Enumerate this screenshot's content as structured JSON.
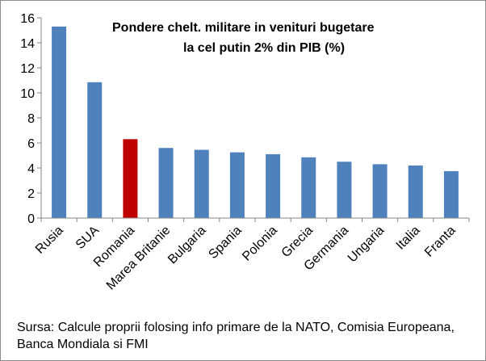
{
  "chart_data": {
    "type": "bar",
    "title_lines": [
      "Pondere chelt. militare in venituri bugetare",
      "la cel putin 2% din PIB (%)"
    ],
    "categories": [
      "Rusia",
      "SUA",
      "Romania",
      "Marea Britanie",
      "Bulgaria",
      "Spania",
      "Polonia",
      "Grecia",
      "Germania",
      "Ungaria",
      "Italia",
      "Franta"
    ],
    "values": [
      15.3,
      10.85,
      6.3,
      5.6,
      5.45,
      5.25,
      5.1,
      4.85,
      4.5,
      4.3,
      4.2,
      3.75
    ],
    "colors": [
      "#4f81bd",
      "#4f81bd",
      "#c00000",
      "#4f81bd",
      "#4f81bd",
      "#4f81bd",
      "#4f81bd",
      "#4f81bd",
      "#4f81bd",
      "#4f81bd",
      "#4f81bd",
      "#4f81bd"
    ],
    "ylim": [
      0,
      16
    ],
    "yticks": [
      "0",
      "2",
      "4",
      "6",
      "8",
      "10",
      "12",
      "14",
      "16"
    ],
    "grid": false,
    "legend": "none"
  },
  "source_lines": [
    "Sursa: Calcule proprii folosing info primare de la NATO, Comisia Europeana,",
    "Banca Mondiala si FMI"
  ]
}
